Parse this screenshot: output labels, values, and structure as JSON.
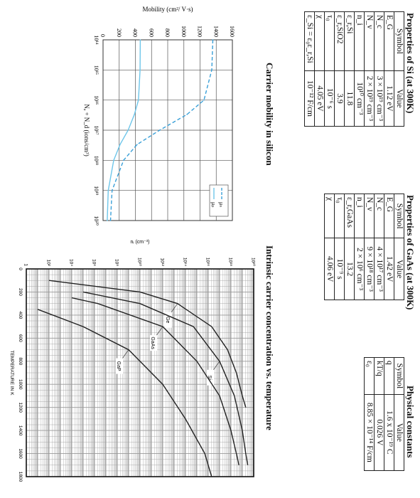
{
  "si": {
    "title": "Properties of Si (at 300K)",
    "head": {
      "symbol": "Symbol",
      "value": "Value"
    },
    "rows": [
      {
        "symbol": "E_G",
        "value": "1.12 eV"
      },
      {
        "symbol": "N_c",
        "value": "3 × 10¹⁹ cm⁻³"
      },
      {
        "symbol": "N_v",
        "value": "2 × 10¹⁹ cm⁻³"
      },
      {
        "symbol": "n_i",
        "value": "10¹⁰ cm⁻³"
      },
      {
        "symbol": "ε_r,Si",
        "value": "11.8"
      },
      {
        "symbol": "ε_r,SiO2",
        "value": "3.9"
      },
      {
        "symbol": "τ₀",
        "value": "10⁻⁶ s"
      },
      {
        "symbol": "χ",
        "value": "4.05 eV"
      },
      {
        "symbol": "ε_Si = ε₀ε_r,Si",
        "value": "10⁻¹² F/cm"
      }
    ]
  },
  "gaas": {
    "title": "Properties of GaAs (at 300K)",
    "head": {
      "symbol": "Symbol",
      "value": "Value"
    },
    "rows": [
      {
        "symbol": "E_G",
        "value": "1.42 eV"
      },
      {
        "symbol": "N_c",
        "value": "4 × 10¹⁷ cm⁻³"
      },
      {
        "symbol": "N_v",
        "value": "9 × 10¹⁸ cm⁻³"
      },
      {
        "symbol": "n_i",
        "value": "2 × 10⁶ cm⁻³"
      },
      {
        "symbol": "ε_r,GaAs",
        "value": "13.2"
      },
      {
        "symbol": "τ₀",
        "value": "10⁻⁹ s"
      },
      {
        "symbol": "χ",
        "value": "4.06 eV"
      }
    ]
  },
  "constants": {
    "title": "Physical constants",
    "head": {
      "symbol": "Symbol",
      "value": "Value"
    },
    "rows": [
      {
        "symbol": "q",
        "value": "1.6 x 10⁻¹⁹ C"
      },
      {
        "symbol": "kT/q",
        "value": "0.026 V"
      },
      {
        "symbol": "ε₀",
        "value": "8.85 × 10⁻¹⁴ F/cm"
      }
    ]
  },
  "mobility_chart": {
    "caption": "Carrier mobility in silicon",
    "chart_data": {
      "type": "line",
      "ylabel": "Mobility (cm²/ V·s)",
      "xlabel": "Nₐ + N_d (ions/cm³)",
      "x_scale": "log",
      "x_ticks": [
        "10¹⁴",
        "10¹⁵",
        "10¹⁶",
        "10¹⁷",
        "10¹⁸",
        "10¹⁹",
        "10²⁰"
      ],
      "y_ticks": [
        "0",
        "200",
        "400",
        "600",
        "800",
        "1000",
        "1200",
        "1400",
        "1600"
      ],
      "xlim": [
        100000000000000.0,
        1e+20
      ],
      "ylim": [
        0,
        1600
      ],
      "grid": true,
      "legend_position": "top-right",
      "series": [
        {
          "name": "μₙ",
          "style": "dashed",
          "color": "#3aa0d8",
          "x": [
            100000000000000.0,
            1000000000000000.0,
            1e+16,
            3e+16,
            1e+17,
            3e+17,
            1e+18,
            1e+19,
            1e+20
          ],
          "values": [
            1358,
            1345,
            1248,
            1038,
            700,
            420,
            254,
            112,
            92
          ]
        },
        {
          "name": "μₚ",
          "style": "solid",
          "color": "#6ec6ea",
          "x": [
            100000000000000.0,
            1000000000000000.0,
            1e+16,
            3e+16,
            1e+17,
            3e+17,
            1e+18,
            1e+19,
            1e+20
          ],
          "values": [
            461,
            458,
            438,
            388,
            310,
            210,
            132,
            64,
            52
          ]
        }
      ]
    }
  },
  "ni_chart": {
    "caption": "Intrinsic carrier concentration vs. temperature",
    "chart_data": {
      "type": "line",
      "ylabel": "nᵢ (cm⁻³)",
      "xlabel": "TEMPERATURE IN K",
      "y_scale": "log",
      "x_ticks": [
        "0",
        "200",
        "400",
        "600",
        "800",
        "1000",
        "1200",
        "1400",
        "1600",
        "1800"
      ],
      "y_ticks": [
        "1",
        "10²",
        "10⁴",
        "10⁶",
        "10⁸",
        "10¹⁰",
        "10¹²",
        "10¹⁴",
        "10¹⁶",
        "10¹⁸",
        "10²⁰"
      ],
      "xlim": [
        0,
        1800
      ],
      "ylim": [
        1,
        1e+20
      ],
      "grid": true,
      "series": [
        {
          "name": "Ge",
          "x": [
            100,
            200,
            300,
            500,
            700,
            900,
            1100,
            1200
          ],
          "values": [
            100.0,
            10000000000.0,
            20000000000000.0,
            2e+16,
            5e+17,
            3e+18,
            1e+19,
            2e+19
          ]
        },
        {
          "name": "Si",
          "x": [
            200,
            300,
            500,
            800,
            1100,
            1400,
            1600,
            1700
          ],
          "values": [
            100000.0,
            10000000000.0,
            500000000000000.0,
            1e+17,
            2e+18,
            1e+19,
            2e+19,
            3e+19
          ]
        },
        {
          "name": "GaAs",
          "x": [
            250,
            300,
            500,
            800,
            1100,
            1400,
            1600,
            1700
          ],
          "values": [
            10000.0,
            2000000.0,
            1000000000000.0,
            1000000000000000.0,
            1e+17,
            1e+18,
            3e+18,
            5e+18
          ]
        },
        {
          "name": "GaP",
          "x": [
            350,
            500,
            700,
            1000,
            1300,
            1600,
            1800
          ],
          "values": [
            10.0,
            100000.0,
            1000000000.0,
            1000000000000.0,
            100000000000000.0,
            5000000000000000.0,
            2e+16
          ]
        }
      ]
    }
  }
}
